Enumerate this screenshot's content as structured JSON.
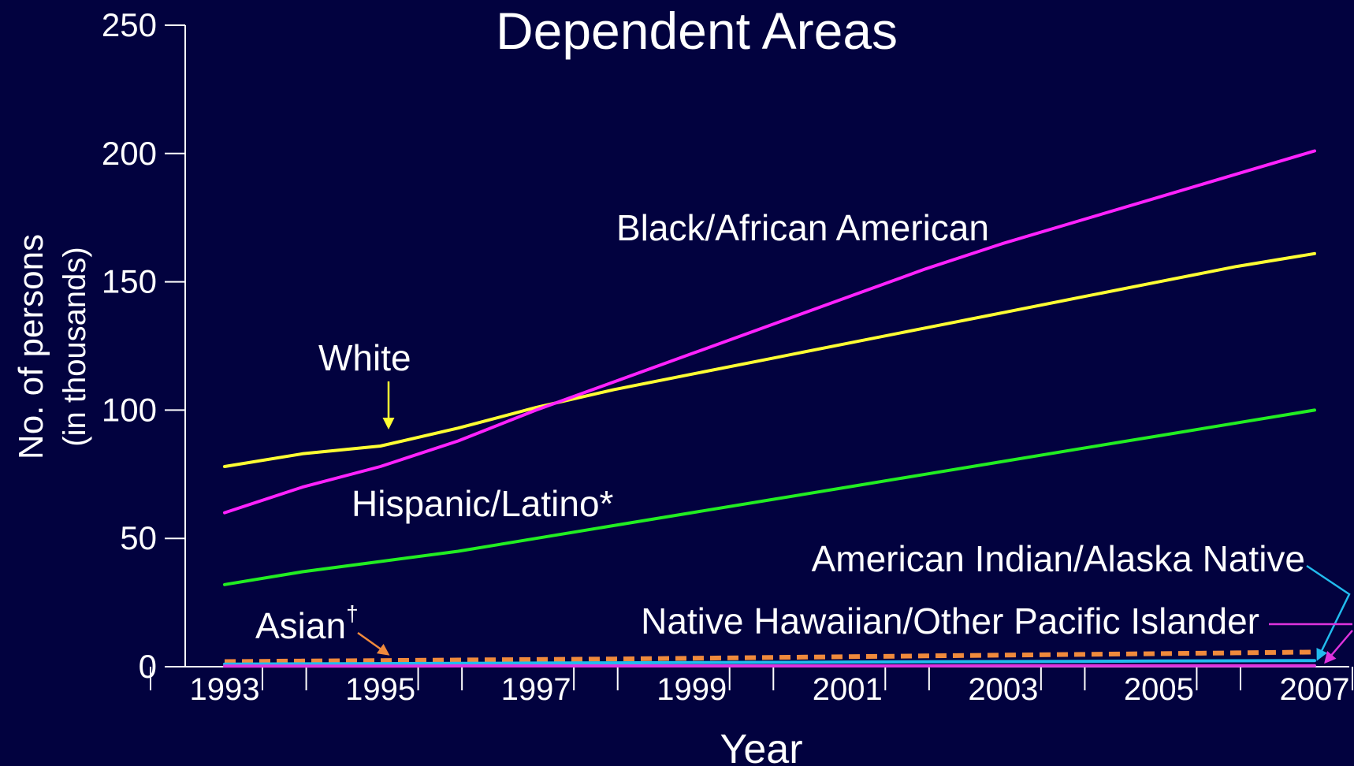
{
  "chart_data": {
    "type": "line",
    "title": "Dependent Areas",
    "xlabel": "Year",
    "ylabel": "No. of persons",
    "ylabel_sub": "(in thousands)",
    "xlim": [
      1993,
      2007
    ],
    "ylim": [
      0,
      250
    ],
    "y_ticks": [
      0,
      50,
      100,
      150,
      200,
      250
    ],
    "x_tick_labels": [
      "1993",
      "1995",
      "1997",
      "1999",
      "2001",
      "2003",
      "2005",
      "2007"
    ],
    "x_tick_values": [
      1993,
      1995,
      1997,
      1999,
      2001,
      2003,
      2005,
      2007
    ],
    "x": [
      1993,
      1994,
      1995,
      1996,
      1997,
      1998,
      1999,
      2000,
      2001,
      2002,
      2003,
      2004,
      2005,
      2006,
      2007
    ],
    "grid": false,
    "legend": "none",
    "series": [
      {
        "name": "White",
        "color": "#ffff33",
        "dashed": false,
        "values": [
          78,
          83,
          86,
          93,
          101,
          108,
          114,
          120,
          126,
          132,
          138,
          144,
          150,
          156,
          161
        ]
      },
      {
        "name": "Black/African American",
        "color": "#ff22ff",
        "dashed": false,
        "values": [
          60,
          70,
          78,
          88,
          100,
          111,
          122,
          133,
          144,
          155,
          165,
          174,
          183,
          192,
          201
        ]
      },
      {
        "name": "Hispanic/Latino*",
        "color": "#22ee22",
        "dashed": false,
        "values": [
          32,
          37,
          41,
          45,
          50,
          55,
          60,
          65,
          70,
          75,
          80,
          85,
          90,
          95,
          100
        ]
      },
      {
        "name": "Asian†",
        "color": "#f08a3c",
        "dashed": true,
        "values": [
          2,
          2.2,
          2.4,
          2.6,
          2.8,
          3,
          3.3,
          3.6,
          3.9,
          4.2,
          4.5,
          4.8,
          5.1,
          5.4,
          5.7
        ]
      },
      {
        "name": "American Indian/Alaska Native",
        "color": "#22bbee",
        "dashed": false,
        "values": [
          1,
          1.1,
          1.2,
          1.3,
          1.4,
          1.5,
          1.6,
          1.7,
          1.8,
          1.9,
          2,
          2.1,
          2.2,
          2.3,
          2.4
        ]
      },
      {
        "name": "Native Hawaiian/Other Pacific Islander",
        "color": "#dd33dd",
        "dashed": false,
        "values": [
          0.2,
          0.2,
          0.2,
          0.3,
          0.3,
          0.3,
          0.3,
          0.3,
          0.3,
          0.3,
          0.4,
          0.4,
          0.4,
          0.4,
          0.4
        ]
      }
    ],
    "annotations": [
      {
        "text": "White",
        "color": "#ffff33"
      },
      {
        "text": "Black/African American",
        "color": "#ff22ff"
      },
      {
        "text": "Hispanic/Latino*",
        "color": "#22ee22"
      },
      {
        "text": "Asian",
        "sup": "†",
        "color": "#f08a3c"
      },
      {
        "text": "American Indian/Alaska Native",
        "color": "#22bbee"
      },
      {
        "text": "Native Hawaiian/Other Pacific Islander",
        "color": "#dd33dd"
      }
    ]
  }
}
